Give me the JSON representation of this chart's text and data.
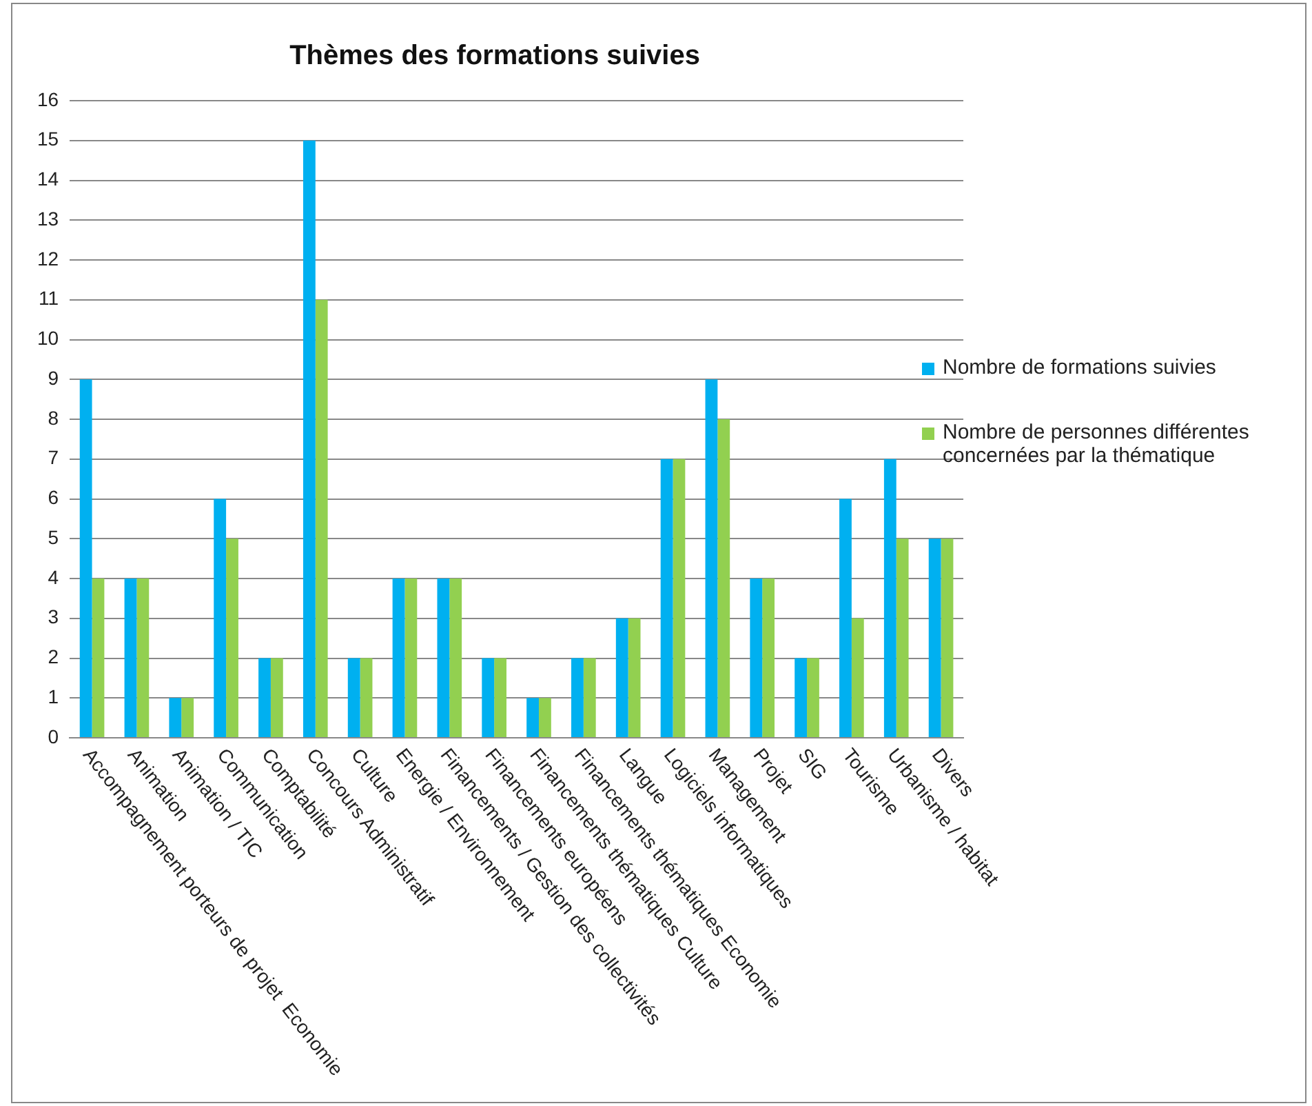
{
  "chart_data": {
    "type": "bar",
    "title": "Thèmes des formations suivies",
    "categories": [
      "Accompagnement porteurs de projet  Economie",
      "Animation",
      "Animation / TIC",
      "Communication",
      "Comptabilité",
      "Concours Administratif",
      "Culture",
      "Energie / Environnement",
      "Financements / Gestion des collectivités",
      "Financements européens",
      "Financements thématiques Culture",
      "Financements thématiques Economie",
      "Langue",
      "Logiciels informatiques",
      "Management",
      "Projet",
      "SIG",
      "Tourisme",
      "Urbanisme / habitat",
      "Divers"
    ],
    "series": [
      {
        "name": "Nombre de formations suivies",
        "color": "#00b0f0",
        "values": [
          9,
          4,
          1,
          6,
          2,
          15,
          2,
          4,
          4,
          2,
          1,
          2,
          3,
          7,
          9,
          4,
          2,
          6,
          7,
          5
        ]
      },
      {
        "name": "Nombre de personnes différentes concernées par la thématique",
        "color": "#92d050",
        "values": [
          4,
          4,
          1,
          5,
          2,
          11,
          2,
          4,
          4,
          2,
          1,
          2,
          3,
          7,
          8,
          4,
          2,
          3,
          5,
          5
        ]
      }
    ],
    "ylim": [
      0,
      16
    ],
    "yticks": [
      0,
      1,
      2,
      3,
      4,
      5,
      6,
      7,
      8,
      9,
      10,
      11,
      12,
      13,
      14,
      15,
      16
    ],
    "grid": "y",
    "legend": "right"
  }
}
